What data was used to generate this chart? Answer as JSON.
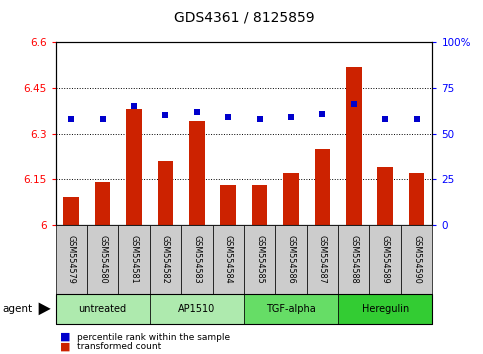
{
  "title": "GDS4361 / 8125859",
  "samples": [
    "GSM554579",
    "GSM554580",
    "GSM554581",
    "GSM554582",
    "GSM554583",
    "GSM554584",
    "GSM554585",
    "GSM554586",
    "GSM554587",
    "GSM554588",
    "GSM554589",
    "GSM554590"
  ],
  "bar_values": [
    6.09,
    6.14,
    6.38,
    6.21,
    6.34,
    6.13,
    6.13,
    6.17,
    6.25,
    6.52,
    6.19,
    6.17
  ],
  "dot_values": [
    58,
    58,
    65,
    60,
    62,
    59,
    58,
    59,
    61,
    66,
    58,
    58
  ],
  "bar_color": "#cc2200",
  "dot_color": "#0000cc",
  "ylim_left": [
    6.0,
    6.6
  ],
  "ylim_right": [
    0,
    100
  ],
  "yticks_left": [
    6.0,
    6.15,
    6.3,
    6.45,
    6.6
  ],
  "yticks_right": [
    0,
    25,
    50,
    75,
    100
  ],
  "ytick_labels_left": [
    "6",
    "6.15",
    "6.3",
    "6.45",
    "6.6"
  ],
  "ytick_labels_right": [
    "0",
    "25",
    "50",
    "75",
    "100%"
  ],
  "hlines": [
    6.15,
    6.3,
    6.45
  ],
  "groups": [
    {
      "label": "untreated",
      "start": 0,
      "end": 3,
      "color": "#aeeaae"
    },
    {
      "label": "AP1510",
      "start": 3,
      "end": 6,
      "color": "#aeeaae"
    },
    {
      "label": "TGF-alpha",
      "start": 6,
      "end": 9,
      "color": "#66dd66"
    },
    {
      "label": "Heregulin",
      "start": 9,
      "end": 12,
      "color": "#33cc33"
    }
  ],
  "agent_label": "agent",
  "legend_red_label": "transformed count",
  "legend_blue_label": "percentile rank within the sample",
  "bar_color_legend": "#cc2200",
  "dot_color_legend": "#0000cc",
  "background_color": "#ffffff",
  "title_fontsize": 10,
  "tick_fontsize": 7.5,
  "bar_width": 0.5,
  "group_colors_alt": [
    "#aeeaae",
    "#aeeaae",
    "#66dd66",
    "#33cc33"
  ]
}
